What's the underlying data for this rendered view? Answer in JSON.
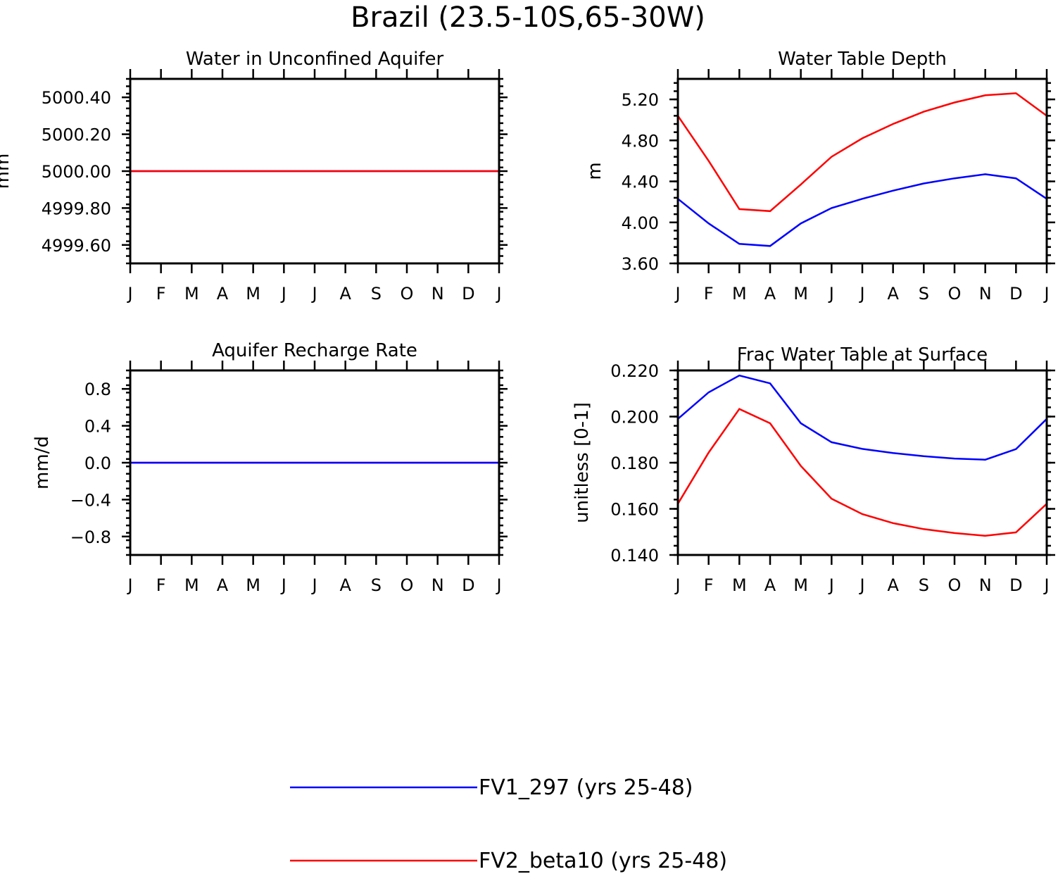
{
  "figure_title": "Brazil (23.5-10S,65-30W)",
  "legend": [
    {
      "label": "FV1_297 (yrs 25-48)",
      "color": "#0000ff"
    },
    {
      "label": "FV2_beta10 (yrs 25-48)",
      "color": "#ff0000"
    }
  ],
  "chart_data": [
    {
      "type": "line",
      "title": "Water in Unconfined Aquifer",
      "ylabel": "mm",
      "xlabel": "",
      "categories": [
        "J",
        "F",
        "M",
        "A",
        "M",
        "J",
        "J",
        "A",
        "S",
        "O",
        "N",
        "D",
        "J"
      ],
      "ylim": [
        4999.5,
        5000.5
      ],
      "yticks": [
        4999.6,
        4999.8,
        5000.0,
        5000.2,
        5000.4
      ],
      "ytick_labels": [
        "4999.60",
        "4999.80",
        "5000.00",
        "5000.20",
        "5000.40"
      ],
      "series": [
        {
          "name": "FV1_297 (yrs 25-48)",
          "color": "#0000ff",
          "values": [
            5000,
            5000,
            5000,
            5000,
            5000,
            5000,
            5000,
            5000,
            5000,
            5000,
            5000,
            5000,
            5000
          ]
        },
        {
          "name": "FV2_beta10 (yrs 25-48)",
          "color": "#ff0000",
          "values": [
            5000,
            5000,
            5000,
            5000,
            5000,
            5000,
            5000,
            5000,
            5000,
            5000,
            5000,
            5000,
            5000
          ]
        }
      ]
    },
    {
      "type": "line",
      "title": "Water Table Depth",
      "ylabel": "m",
      "xlabel": "",
      "categories": [
        "J",
        "F",
        "M",
        "A",
        "M",
        "J",
        "J",
        "A",
        "S",
        "O",
        "N",
        "D",
        "J"
      ],
      "ylim": [
        3.6,
        5.4
      ],
      "yticks": [
        3.6,
        4.0,
        4.4,
        4.8,
        5.2
      ],
      "ytick_labels": [
        "3.60",
        "4.00",
        "4.40",
        "4.80",
        "5.20"
      ],
      "series": [
        {
          "name": "FV2_beta10 (yrs 25-48)",
          "color": "#ff0000",
          "values": [
            5.04,
            4.6,
            4.13,
            4.11,
            4.37,
            4.64,
            4.82,
            4.96,
            5.08,
            5.17,
            5.24,
            5.26,
            5.04
          ]
        },
        {
          "name": "FV1_297 (yrs 25-48)",
          "color": "#0000ff",
          "values": [
            4.23,
            3.99,
            3.79,
            3.77,
            3.99,
            4.14,
            4.23,
            4.31,
            4.38,
            4.43,
            4.47,
            4.43,
            4.23
          ]
        }
      ]
    },
    {
      "type": "line",
      "title": "Aquifer Recharge Rate",
      "ylabel": "mm/d",
      "xlabel": "",
      "categories": [
        "J",
        "F",
        "M",
        "A",
        "M",
        "J",
        "J",
        "A",
        "S",
        "O",
        "N",
        "D",
        "J"
      ],
      "ylim": [
        -1.0,
        1.0
      ],
      "yticks": [
        -0.8,
        -0.4,
        0.0,
        0.4,
        0.8
      ],
      "ytick_labels": [
        "−0.8",
        "−0.4",
        "0.0",
        "0.4",
        "0.8"
      ],
      "series": [
        {
          "name": "FV2_beta10 (yrs 25-48)",
          "color": "#ff0000",
          "values": [
            0,
            0,
            0,
            0,
            0,
            0,
            0,
            0,
            0,
            0,
            0,
            0,
            0
          ]
        },
        {
          "name": "FV1_297 (yrs 25-48)",
          "color": "#0000ff",
          "values": [
            0,
            0,
            0,
            0,
            0,
            0,
            0,
            0,
            0,
            0,
            0,
            0,
            0
          ]
        }
      ]
    },
    {
      "type": "line",
      "title": "Frac Water Table at Surface",
      "ylabel": "unitless [0-1]",
      "xlabel": "",
      "categories": [
        "J",
        "F",
        "M",
        "A",
        "M",
        "J",
        "J",
        "A",
        "S",
        "O",
        "N",
        "D",
        "J"
      ],
      "ylim": [
        0.14,
        0.22
      ],
      "yticks": [
        0.14,
        0.16,
        0.18,
        0.2,
        0.22
      ],
      "ytick_labels": [
        "0.140",
        "0.160",
        "0.180",
        "0.200",
        "0.220"
      ],
      "series": [
        {
          "name": "FV1_297 (yrs 25-48)",
          "color": "#0000ff",
          "values": [
            0.199,
            0.2105,
            0.2178,
            0.2144,
            0.1971,
            0.1889,
            0.186,
            0.1842,
            0.1828,
            0.1818,
            0.1813,
            0.1859,
            0.199
          ]
        },
        {
          "name": "FV2_beta10 (yrs 25-48)",
          "color": "#ff0000",
          "values": [
            0.1622,
            0.1844,
            0.2033,
            0.1971,
            0.1786,
            0.1644,
            0.1577,
            0.1538,
            0.1512,
            0.1495,
            0.1483,
            0.1498,
            0.1622
          ]
        }
      ]
    }
  ]
}
